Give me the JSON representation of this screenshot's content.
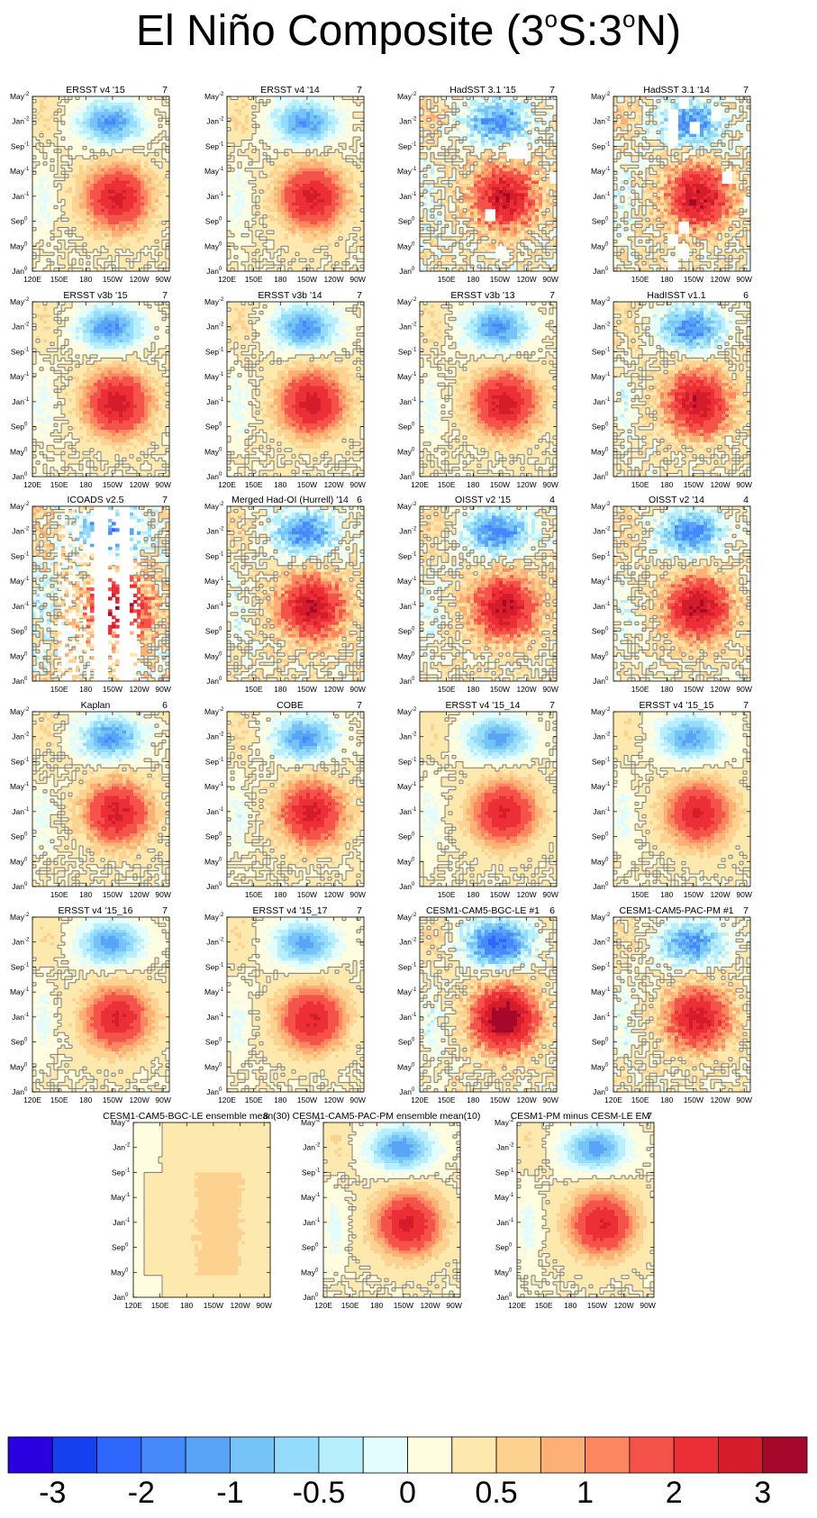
{
  "title": {
    "prefix": "El Niño Composite (3",
    "deg1": "o",
    "mid": "S:3",
    "deg2": "o",
    "suffix": "N)"
  },
  "colors": {
    "contour": "#7a7a7a",
    "frame": "#000000",
    "levels": [
      "#2a00e0",
      "#1440f0",
      "#2e66fb",
      "#4589fa",
      "#5aa4f7",
      "#76c3f7",
      "#95dcfc",
      "#b8effd",
      "#e3fcfe",
      "#fffde0",
      "#fde9ad",
      "#fdd190",
      "#fdb076",
      "#fc8660",
      "#f5524a",
      "#ec2f36",
      "#d41c2a",
      "#a6082b"
    ]
  },
  "chart_data": {
    "type": "heatmap",
    "description_source": "Hovmoller composites of SST anomaly along the equator (3S:3N)",
    "ylabels_base": [
      "May",
      "Jan",
      "Sep",
      "May",
      "Jan",
      "Sep",
      "May",
      "Jan"
    ],
    "ylabels_sup": [
      "-2",
      "-2",
      "-1",
      "-1",
      "-1",
      "0",
      "0",
      "0"
    ],
    "colorbar": {
      "boundaries": [
        -3,
        -2.5,
        -2,
        -1.5,
        -1.25,
        -1,
        -0.75,
        -0.5,
        -0.25,
        0,
        0.25,
        0.5,
        0.75,
        1,
        1.5,
        2,
        2.5,
        3
      ],
      "labels": [
        "-3",
        "-2",
        "-1",
        "-0.5",
        "0",
        "0.5",
        "1",
        "2",
        "3"
      ]
    },
    "panels": [
      {
        "title": "ERSST v4 '15",
        "count": "7",
        "xticks": [
          "120E",
          "150E",
          "180",
          "150W",
          "120W",
          "90W"
        ],
        "amp": 1.0,
        "noise": 0.15,
        "gaps": false
      },
      {
        "title": "ERSST v4 '14",
        "count": "7",
        "xticks": [
          "120E",
          "150E",
          "180",
          "150W",
          "120W",
          "90W"
        ],
        "amp": 1.0,
        "noise": 0.15,
        "gaps": false
      },
      {
        "title": "HadSST 3.1 '15",
        "count": "7",
        "xticks": [
          "150E",
          "180",
          "150W",
          "120W",
          "90W"
        ],
        "amp": 1.1,
        "noise": 0.45,
        "gaps": true
      },
      {
        "title": "HadSST 3.1 '14",
        "count": "7",
        "xticks": [
          "150E",
          "180",
          "150W",
          "120W",
          "90W"
        ],
        "amp": 1.1,
        "noise": 0.45,
        "gaps": true
      },
      {
        "title": "ERSST v3b '15",
        "count": "7",
        "xticks": [
          "120E",
          "150E",
          "180",
          "150W",
          "120W",
          "90W"
        ],
        "amp": 1.05,
        "noise": 0.15,
        "gaps": false
      },
      {
        "title": "ERSST v3b '14",
        "count": "7",
        "xticks": [
          "120E",
          "150E",
          "180",
          "150W",
          "120W",
          "90W"
        ],
        "amp": 1.05,
        "noise": 0.15,
        "gaps": false
      },
      {
        "title": "ERSST v3b '13",
        "count": "7",
        "xticks": [
          "120E",
          "150E",
          "180",
          "150W",
          "120W",
          "90W"
        ],
        "amp": 1.05,
        "noise": 0.15,
        "gaps": false
      },
      {
        "title": "HadISST v1.1",
        "count": "6",
        "xticks": [
          "150E",
          "180",
          "150W",
          "120W",
          "90W"
        ],
        "amp": 1.1,
        "noise": 0.3,
        "gaps": false
      },
      {
        "title": "ICOADS v2.5",
        "count": "7",
        "xticks": [
          "150E",
          "180",
          "150W",
          "120W",
          "90W"
        ],
        "amp": 1.2,
        "noise": 0.6,
        "gaps": true,
        "sparse": true
      },
      {
        "title": "Merged Had-OI (Hurrell) '14",
        "count": "6",
        "xticks": [
          "150E",
          "180",
          "150W",
          "120W",
          "90W"
        ],
        "amp": 1.15,
        "noise": 0.35,
        "gaps": false
      },
      {
        "title": "OISST v2 '15",
        "count": "4",
        "xticks": [
          "150E",
          "180",
          "150W",
          "120W",
          "90W"
        ],
        "amp": 1.15,
        "noise": 0.35,
        "gaps": false
      },
      {
        "title": "OISST v2 '14",
        "count": "4",
        "xticks": [
          "150E",
          "180",
          "150W",
          "120W",
          "90W"
        ],
        "amp": 1.15,
        "noise": 0.35,
        "gaps": false
      },
      {
        "title": "Kaplan",
        "count": "6",
        "xticks": [
          "150E",
          "180",
          "150W",
          "120W",
          "90W"
        ],
        "amp": 1.0,
        "noise": 0.2,
        "gaps": false
      },
      {
        "title": "COBE",
        "count": "7",
        "xticks": [
          "150E",
          "180",
          "150W",
          "120W",
          "90W"
        ],
        "amp": 1.0,
        "noise": 0.2,
        "gaps": false
      },
      {
        "title": "ERSST v4 '15_14",
        "count": "7",
        "xticks": [
          "150E",
          "180",
          "150W",
          "120W",
          "90W"
        ],
        "amp": 0.95,
        "noise": 0.1,
        "gaps": false
      },
      {
        "title": "ERSST v4 '15_15",
        "count": "7",
        "xticks": [
          "150E",
          "180",
          "150W",
          "120W",
          "90W"
        ],
        "amp": 0.95,
        "noise": 0.1,
        "gaps": false
      },
      {
        "title": "ERSST v4 '15_16",
        "count": "7",
        "xticks": [
          "120E",
          "150E",
          "180",
          "150W",
          "120W",
          "90W"
        ],
        "amp": 0.95,
        "noise": 0.1,
        "gaps": false
      },
      {
        "title": "ERSST v4 '15_17",
        "count": "7",
        "xticks": [
          "120E",
          "150E",
          "180",
          "150W",
          "120W",
          "90W"
        ],
        "amp": 0.95,
        "noise": 0.1,
        "gaps": false
      },
      {
        "title": "CESM1-CAM5-BGC-LE #1",
        "count": "6",
        "xticks": [
          "120E",
          "150E",
          "180",
          "150W",
          "120W",
          "90W"
        ],
        "amp": 1.45,
        "noise": 0.3,
        "gaps": false
      },
      {
        "title": "CESM1-CAM5-PAC-PM #1",
        "count": "7",
        "xticks": [
          "120E",
          "150E",
          "180",
          "150W",
          "120W",
          "90W"
        ],
        "amp": 1.05,
        "noise": 0.3,
        "gaps": false
      },
      {
        "title": "CESM1-CAM5-BGC-LE ensemble mean(30)",
        "count": "8",
        "xticks": [
          "120E",
          "150E",
          "180",
          "150W",
          "120W",
          "90W"
        ],
        "amp": 0.2,
        "noise": 0.02,
        "gaps": false,
        "flat": true
      },
      {
        "title": "CESM1-CAM5-PAC-PM ensemble mean(10)",
        "count": "",
        "xticks": [
          "120E",
          "150E",
          "180",
          "150W",
          "120W",
          "90W"
        ],
        "amp": 1.0,
        "noise": 0.08,
        "gaps": false
      },
      {
        "title": "CESM1-PM minus CESM-LE EM",
        "count": "7",
        "xticks": [
          "120E",
          "150E",
          "180",
          "150W",
          "120W",
          "90W"
        ],
        "amp": 0.95,
        "noise": 0.08,
        "gaps": false
      }
    ]
  }
}
